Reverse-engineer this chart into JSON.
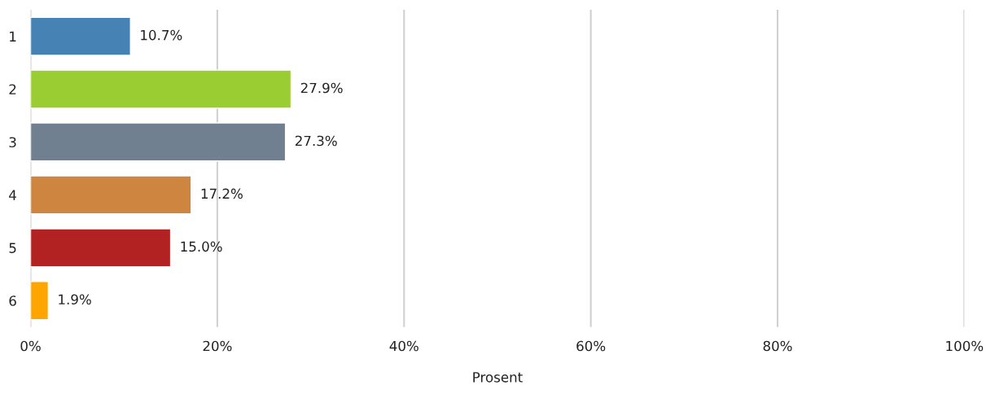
{
  "chart_data": {
    "type": "bar",
    "orientation": "horizontal",
    "xlabel": "Prosent",
    "categories": [
      "1",
      "2",
      "3",
      "4",
      "5",
      "6"
    ],
    "values": [
      10.7,
      27.9,
      27.3,
      17.2,
      15.0,
      1.9
    ],
    "colors": [
      "#4682b4",
      "#9acd32",
      "#708090",
      "#cd853f",
      "#b22222",
      "#ffa500"
    ],
    "value_labels": [
      "10.7%",
      "27.9%",
      "27.3%",
      "17.2%",
      "15.0%",
      "1.9%"
    ],
    "xlim": [
      0,
      100
    ],
    "xticks": [
      {
        "value": 0,
        "label": "0%"
      },
      {
        "value": 20,
        "label": "20%"
      },
      {
        "value": 40,
        "label": "40%"
      },
      {
        "value": 60,
        "label": "60%"
      },
      {
        "value": 80,
        "label": "80%"
      },
      {
        "value": 100,
        "label": "100%"
      }
    ],
    "grid": "x"
  }
}
